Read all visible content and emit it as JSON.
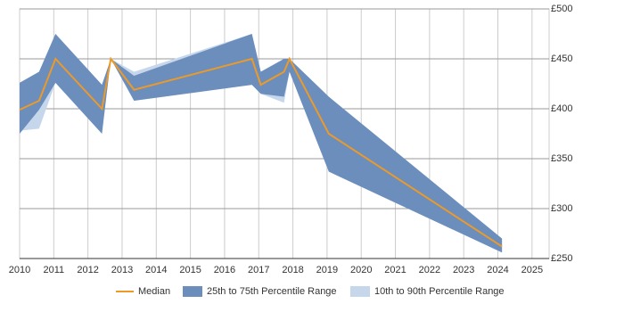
{
  "chart_data": {
    "type": "line",
    "x": [
      2010,
      2010.57,
      2011.05,
      2012.41,
      2012.67,
      2013.35,
      2016.8,
      2017.06,
      2017.74,
      2017.9,
      2019.05,
      2024.12
    ],
    "series": [
      {
        "name": "10th to 90th Percentile Range",
        "color": "#c6d7ec",
        "upper": [
          426,
          437,
          475,
          424,
          450,
          437,
          475,
          437,
          450,
          450,
          412,
          270
        ],
        "lower": [
          378,
          380,
          426,
          375,
          450,
          408,
          424,
          415,
          406,
          437,
          337,
          256
        ]
      },
      {
        "name": "25th to 75th Percentile Range",
        "color": "#6b8ebd",
        "upper": [
          426,
          437,
          475,
          424,
          450,
          433,
          475,
          437,
          450,
          450,
          412,
          270
        ],
        "lower": [
          375,
          399,
          426,
          375,
          450,
          408,
          424,
          415,
          412,
          437,
          337,
          256
        ]
      },
      {
        "name": "Median",
        "color": "#eb9a2a",
        "values": [
          399,
          408,
          450,
          400,
          450,
          419,
          450,
          424,
          437,
          450,
          375,
          262
        ]
      }
    ],
    "xlim": [
      2010,
      2025.5
    ],
    "xticks": [
      2010,
      2011,
      2012,
      2013,
      2014,
      2015,
      2016,
      2017,
      2018,
      2019,
      2020,
      2021,
      2022,
      2023,
      2024,
      2025
    ],
    "ylim": [
      250,
      500
    ],
    "yticks": [
      {
        "value": 250,
        "label": "£250"
      },
      {
        "value": 300,
        "label": "£300"
      },
      {
        "value": 350,
        "label": "£350"
      },
      {
        "value": 400,
        "label": "£400"
      },
      {
        "value": 450,
        "label": "£450"
      },
      {
        "value": 500,
        "label": "£500"
      }
    ],
    "grid": true,
    "legend": "bottom"
  }
}
